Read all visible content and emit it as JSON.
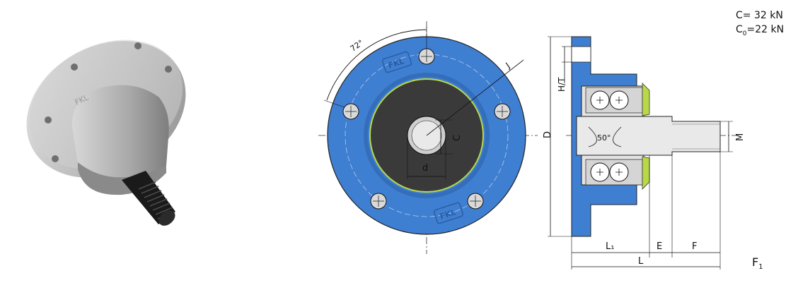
{
  "ratings": {
    "dynamic_label": "C",
    "dynamic_value": "= 32 kN",
    "static_label": "C",
    "static_sub": "0",
    "static_value": "=22 kN"
  },
  "front_view": {
    "angle_label": "72°",
    "dim_j": "J",
    "dim_c": "C",
    "dim_d_small": "d",
    "logo_top": "FKL",
    "logo_bottom": "FKL"
  },
  "side_view": {
    "dim_d_big": "D",
    "dim_ht": "H/T",
    "dim_m": "M",
    "angle_label": "50°",
    "dim_l1": "L₁",
    "dim_e": "E",
    "dim_f": "F",
    "dim_l": "L"
  },
  "model": {
    "main": "F",
    "sub": "1"
  },
  "colors": {
    "flange_blue": "#3f7fd1",
    "hub_dark": "#3a3a3a",
    "shaft_gray": "#cfcfcf",
    "seal_green": "#b8d84a"
  }
}
